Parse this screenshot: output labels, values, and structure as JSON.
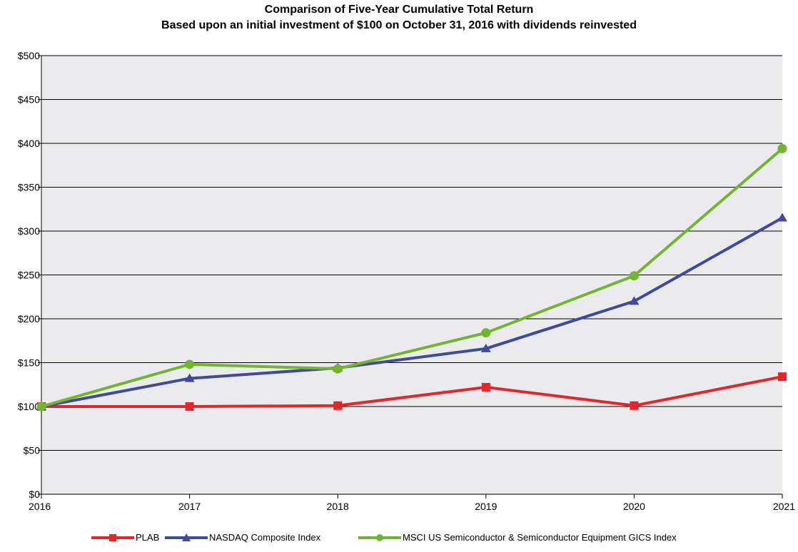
{
  "chart_data": {
    "type": "line",
    "title": "Comparison of Five-Year Cumulative Total Return",
    "subtitle": "Based upon an initial investment of $100 on October 31, 2016 with dividends reinvested",
    "xlabel": "",
    "ylabel": "",
    "x": [
      "2016",
      "2017",
      "2018",
      "2019",
      "2020",
      "2021"
    ],
    "ylim": [
      0,
      500
    ],
    "yticks": [
      0,
      50,
      100,
      150,
      200,
      250,
      300,
      350,
      400,
      450,
      500
    ],
    "ytick_labels": [
      "$0",
      "$50",
      "$100",
      "$150",
      "$200",
      "$250",
      "$300",
      "$350",
      "$400",
      "$450",
      "$500"
    ],
    "grid": true,
    "legend_position": "bottom",
    "series": [
      {
        "name": "PLAB",
        "color": "#e8232a",
        "marker": "square",
        "values": [
          100,
          100,
          101,
          122,
          101,
          134
        ]
      },
      {
        "name": "NASDAQ Composite Index",
        "color": "#3f4a9e",
        "marker": "triangle",
        "values": [
          100,
          132,
          144,
          166,
          220,
          315
        ]
      },
      {
        "name": "MSCI US Semiconductor & Semiconductor Equipment GICS Index",
        "color": "#72b52e",
        "marker": "circle",
        "values": [
          100,
          148,
          143,
          184,
          249,
          394
        ]
      }
    ]
  }
}
